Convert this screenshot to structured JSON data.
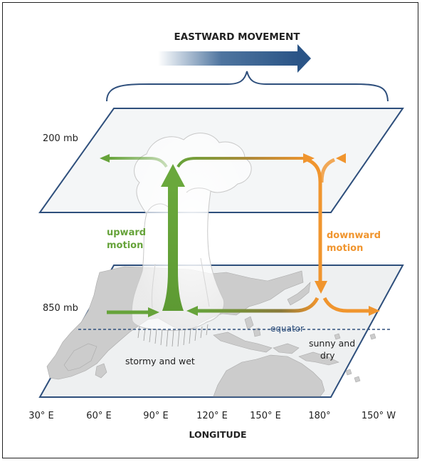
{
  "header": {
    "title": "EASTWARD MOVEMENT"
  },
  "levels": {
    "upper": "200 mb",
    "lower": "850 mb"
  },
  "motion": {
    "upward_line1": "upward",
    "upward_line2": "motion",
    "downward_line1": "downward",
    "downward_line2": "motion"
  },
  "map": {
    "equator": "equator",
    "stormy": "stormy and wet",
    "sunny_line1": "sunny and",
    "sunny_line2": "dry"
  },
  "axis": {
    "ticks": [
      "30° E",
      "60° E",
      "90° E",
      "120° E",
      "150° E",
      "180°",
      "150° W"
    ],
    "title": "LONGITUDE"
  },
  "colors": {
    "plane_stroke": "#2e4f7c",
    "upper_plane_fill": "#f4f6f7",
    "lower_plane_fill": "#eef0f1",
    "land": "#cccccc",
    "upward": "#66a33a",
    "downward": "#f0952e",
    "eastward_arrow": "#2f5c8e",
    "equator_line": "#2e4f7c"
  }
}
